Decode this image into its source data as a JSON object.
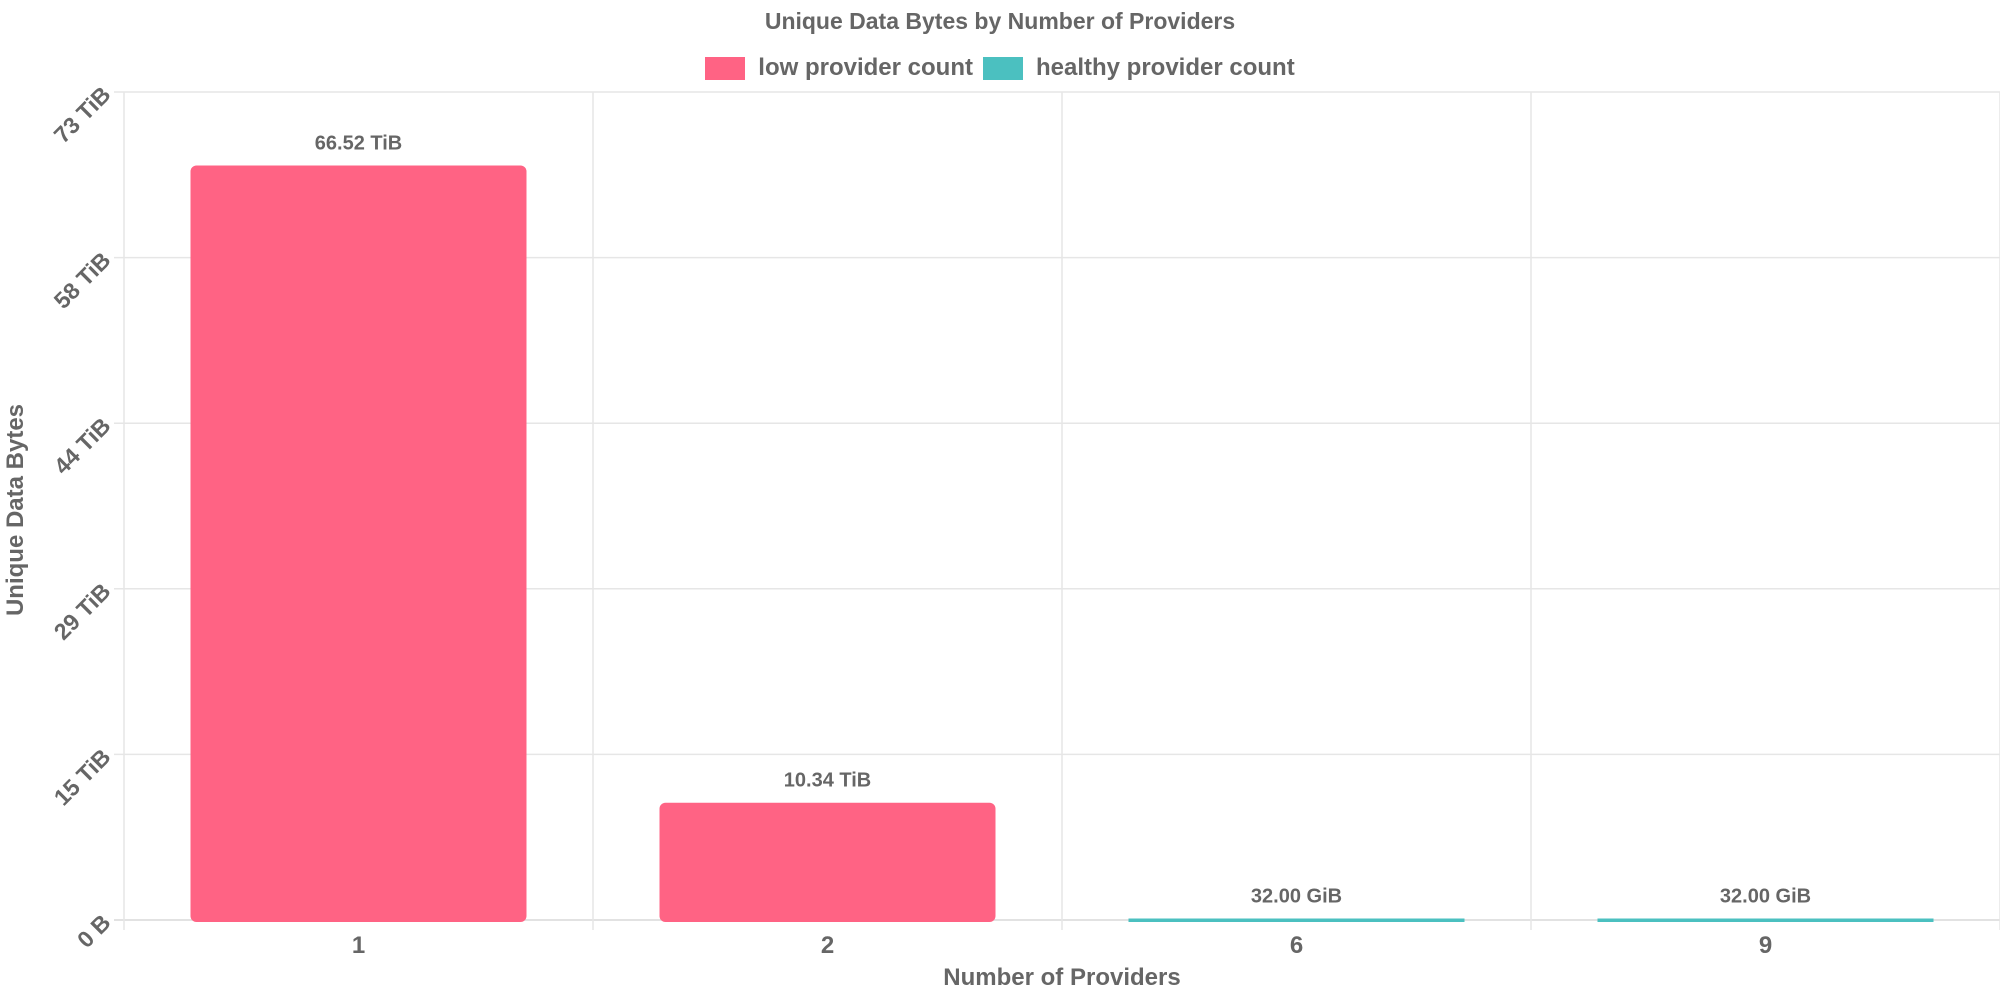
{
  "chart_data": {
    "type": "bar",
    "title": "Unique Data Bytes by Number of Providers",
    "xlabel": "Number of Providers",
    "ylabel": "Unique Data Bytes",
    "categories": [
      "1",
      "2",
      "6",
      "9"
    ],
    "series": [
      {
        "name": "low provider count",
        "color": "#ff6384",
        "values_tib": [
          66.52,
          10.34,
          0,
          0
        ],
        "labels": [
          "66.52 TiB",
          "10.34 TiB",
          "",
          ""
        ]
      },
      {
        "name": "healthy provider count",
        "color": "#4bc0c0",
        "values_tib": [
          0,
          0,
          0.03125,
          0.03125
        ],
        "labels": [
          "",
          "",
          "32.00 GiB",
          "32.00 GiB"
        ]
      }
    ],
    "ylim_tib": [
      0,
      73
    ],
    "yticks_tib": [
      0,
      14.6,
      29.2,
      43.8,
      58.4,
      73
    ],
    "ytick_labels": [
      "0 B",
      "15 TiB",
      "29 TiB",
      "44 TiB",
      "58 TiB",
      "73 TiB"
    ],
    "grid": true,
    "legend_position": "top"
  }
}
